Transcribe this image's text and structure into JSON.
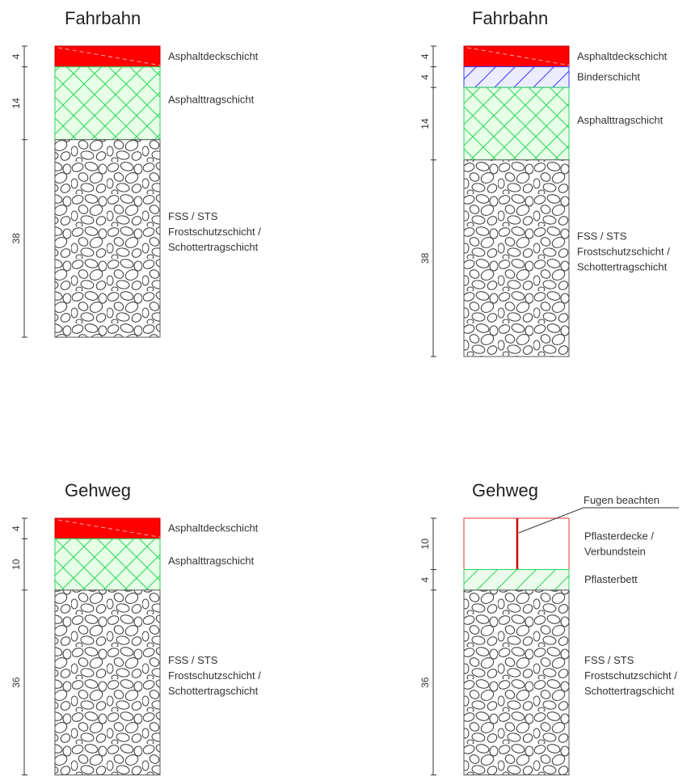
{
  "colors": {
    "asphaltdeck": "#ff0000",
    "tragschicht_hatch": "#2bd65a",
    "tragschicht_bg": "#e6ffe6",
    "binder_hatch": "#3a3aff",
    "binder_bg": "#ececff",
    "gravel": "#444444",
    "pflaster_border": "#e03a3a",
    "pflasterbett_bg": "#ecfcec"
  },
  "panels": [
    {
      "title": "Fahrbahn",
      "layers": [
        {
          "pattern": "asphaltdeck",
          "thickness": 4,
          "thickness_label": "4",
          "label": [
            "Asphaltdeckschicht"
          ]
        },
        {
          "pattern": "tragschicht",
          "thickness": 14,
          "thickness_label": "14",
          "label": [
            "Asphalttragschicht"
          ]
        },
        {
          "pattern": "gravel",
          "thickness": 38,
          "thickness_label": "38",
          "label": [
            "FSS / STS",
            "Frostschutzschicht /",
            "Schottertragschicht"
          ]
        }
      ]
    },
    {
      "title": "Fahrbahn",
      "layers": [
        {
          "pattern": "asphaltdeck",
          "thickness": 4,
          "thickness_label": "4",
          "label": [
            "Asphaltdeckschicht"
          ]
        },
        {
          "pattern": "binder",
          "thickness": 4,
          "thickness_label": "4",
          "label": [
            "Binderschicht"
          ]
        },
        {
          "pattern": "tragschicht",
          "thickness": 14,
          "thickness_label": "14",
          "label": [
            "Asphalttragschicht"
          ]
        },
        {
          "pattern": "gravel",
          "thickness": 38,
          "thickness_label": "38",
          "label": [
            "FSS / STS",
            "Frostschutzschicht /",
            "Schottertragschicht"
          ]
        }
      ]
    },
    {
      "title": "Gehweg",
      "layers": [
        {
          "pattern": "asphaltdeck",
          "thickness": 4,
          "thickness_label": "4",
          "label": [
            "Asphaltdeckschicht"
          ]
        },
        {
          "pattern": "tragschicht",
          "thickness": 10,
          "thickness_label": "10",
          "label": [
            "Asphalttragschicht"
          ]
        },
        {
          "pattern": "gravel",
          "thickness": 36,
          "thickness_label": "36",
          "label": [
            "FSS / STS",
            "Frostschutzschicht /",
            "Schottertragschicht"
          ]
        }
      ]
    },
    {
      "title": "Gehweg",
      "note": "Fugen beachten",
      "layers": [
        {
          "pattern": "pflaster",
          "thickness": 10,
          "thickness_label": "10",
          "label": [
            "Pflasterdecke /",
            "Verbundstein"
          ]
        },
        {
          "pattern": "pflasterbett",
          "thickness": 4,
          "thickness_label": "4",
          "label": [
            "Pflasterbett"
          ]
        },
        {
          "pattern": "gravel",
          "thickness": 36,
          "thickness_label": "36",
          "label": [
            "FSS / STS",
            "Frostschutzschicht /",
            "Schottertragschicht"
          ]
        }
      ]
    }
  ]
}
